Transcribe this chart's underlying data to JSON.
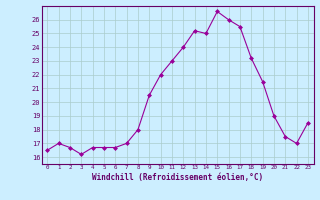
{
  "x": [
    0,
    1,
    2,
    3,
    4,
    5,
    6,
    7,
    8,
    9,
    10,
    11,
    12,
    13,
    14,
    15,
    16,
    17,
    18,
    19,
    20,
    21,
    22,
    23
  ],
  "y": [
    16.5,
    17.0,
    16.7,
    16.2,
    16.7,
    16.7,
    16.7,
    17.0,
    18.0,
    20.5,
    22.0,
    23.0,
    24.0,
    25.2,
    25.0,
    26.6,
    26.0,
    25.5,
    23.2,
    21.5,
    19.0,
    17.5,
    17.0,
    18.5
  ],
  "line_color": "#990099",
  "marker_color": "#990099",
  "bg_color": "#cceeff",
  "grid_color": "#aacccc",
  "axis_label_color": "#660066",
  "xlabel": "Windchill (Refroidissement éolien,°C)",
  "ylim": [
    15.5,
    27
  ],
  "xlim": [
    -0.5,
    23.5
  ],
  "yticks": [
    16,
    17,
    18,
    19,
    20,
    21,
    22,
    23,
    24,
    25,
    26
  ],
  "xticks": [
    0,
    1,
    2,
    3,
    4,
    5,
    6,
    7,
    8,
    9,
    10,
    11,
    12,
    13,
    14,
    15,
    16,
    17,
    18,
    19,
    20,
    21,
    22,
    23
  ]
}
